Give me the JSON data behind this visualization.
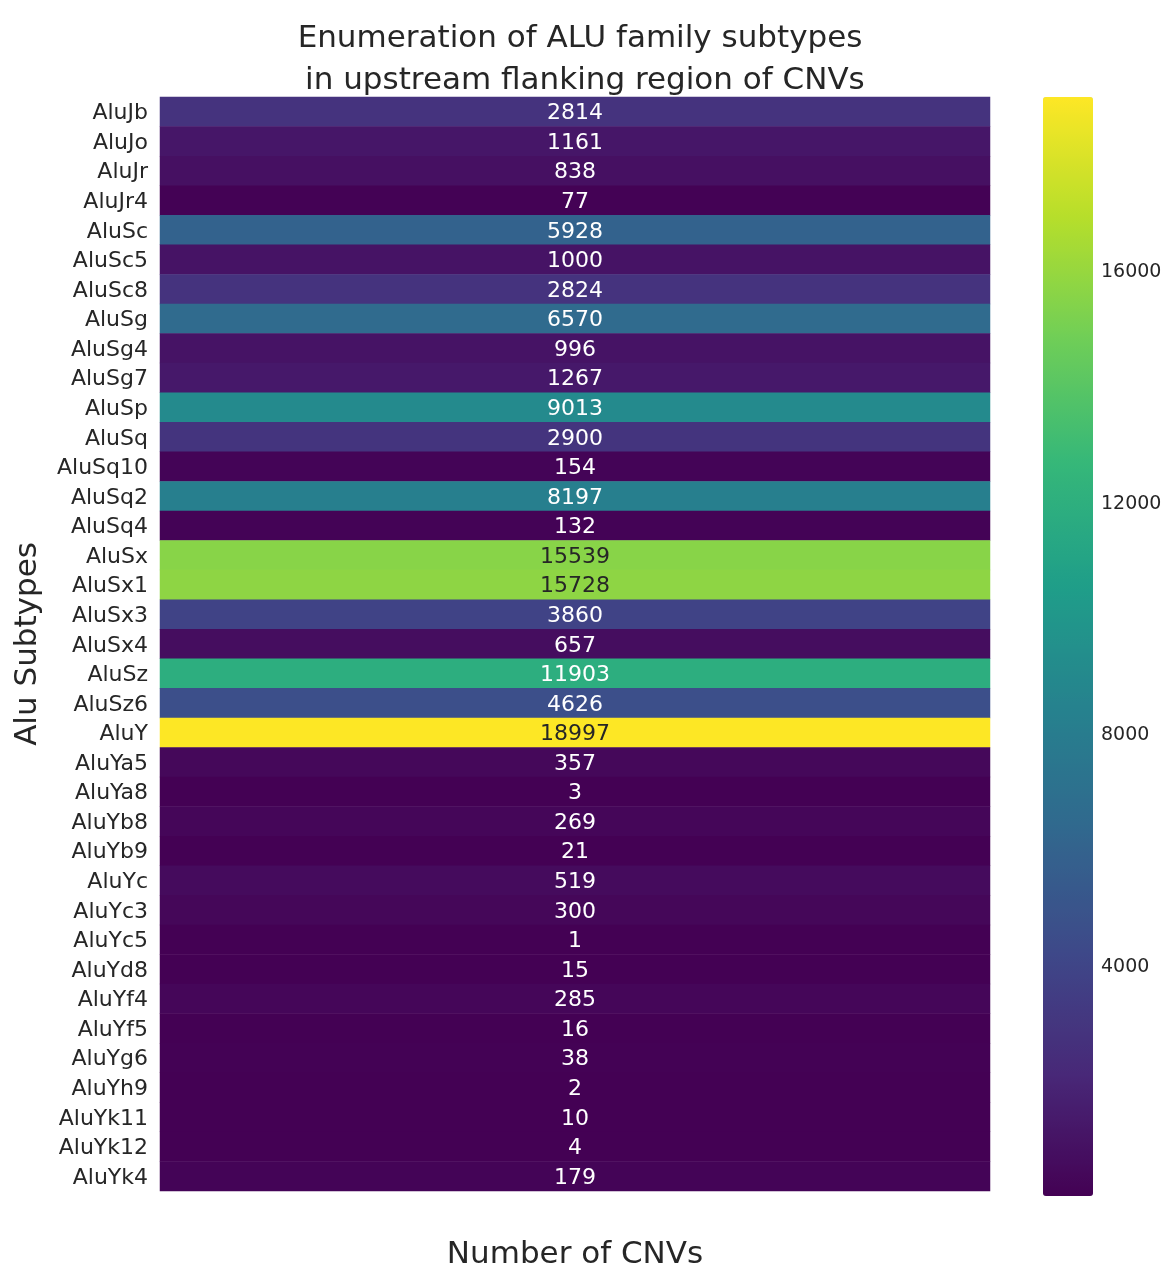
{
  "chart_data": {
    "type": "heatmap",
    "title": "Enumeration of ALU family subtypes\n in upstream flanking region of CNVs",
    "xlabel": "Number of CNVs",
    "ylabel": "Alu Subtypes",
    "categories": [
      null
    ],
    "y_categories": [
      "AluJb",
      "AluJo",
      "AluJr",
      "AluJr4",
      "AluSc",
      "AluSc5",
      "AluSc8",
      "AluSg",
      "AluSg4",
      "AluSg7",
      "AluSp",
      "AluSq",
      "AluSq10",
      "AluSq2",
      "AluSq4",
      "AluSx",
      "AluSx1",
      "AluSx3",
      "AluSx4",
      "AluSz",
      "AluSz6",
      "AluY",
      "AluYa5",
      "AluYa8",
      "AluYb8",
      "AluYb9",
      "AluYc",
      "AluYc3",
      "AluYc5",
      "AluYd8",
      "AluYf4",
      "AluYf5",
      "AluYg6",
      "AluYh9",
      "AluYk11",
      "AluYk12",
      "AluYk4"
    ],
    "cells": [
      [
        2814
      ],
      [
        1161
      ],
      [
        838
      ],
      [
        77
      ],
      [
        5928
      ],
      [
        1000
      ],
      [
        2824
      ],
      [
        6570
      ],
      [
        996
      ],
      [
        1267
      ],
      [
        9013
      ],
      [
        2900
      ],
      [
        154
      ],
      [
        8197
      ],
      [
        132
      ],
      [
        15539
      ],
      [
        15728
      ],
      [
        3860
      ],
      [
        657
      ],
      [
        11903
      ],
      [
        4626
      ],
      [
        18997
      ],
      [
        357
      ],
      [
        3
      ],
      [
        269
      ],
      [
        21
      ],
      [
        519
      ],
      [
        300
      ],
      [
        1
      ],
      [
        15
      ],
      [
        285
      ],
      [
        16
      ],
      [
        38
      ],
      [
        2
      ],
      [
        10
      ],
      [
        4
      ],
      [
        179
      ]
    ],
    "clim": [
      1,
      18997
    ],
    "cticks": [
      4000,
      8000,
      12000,
      16000
    ],
    "data_labels": true
  }
}
